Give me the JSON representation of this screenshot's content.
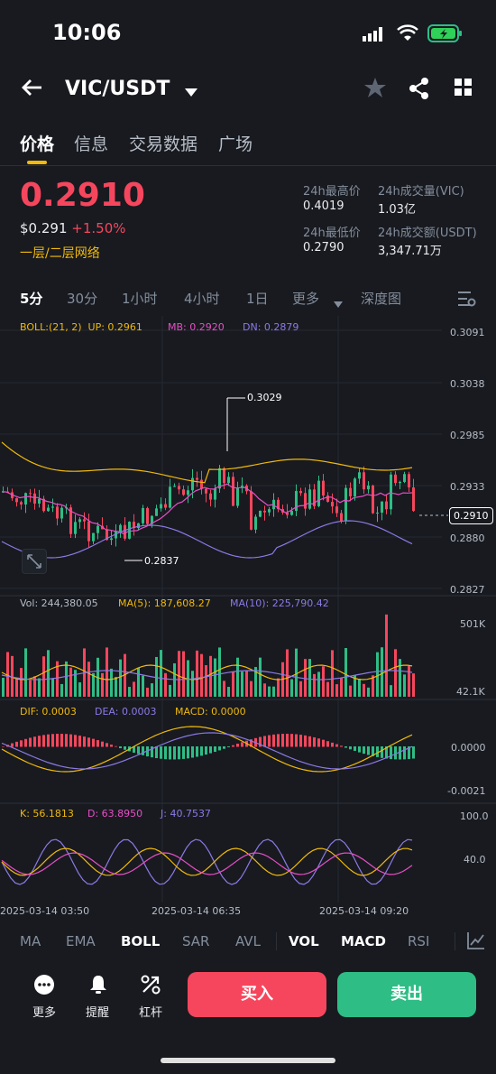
{
  "status": {
    "time": "10:06"
  },
  "header": {
    "pair": "VIC/USDT"
  },
  "tabs": [
    "价格",
    "信息",
    "交易数据",
    "广场"
  ],
  "ticker": {
    "last": "0.2910",
    "usd": "$0.291",
    "change": "+1.50%",
    "network": "一层/二层网络",
    "high_label": "24h最高价",
    "high": "0.4019",
    "low_label": "24h最低价",
    "low": "0.2790",
    "vol_label": "24h成交量(VIC)",
    "vol": "1.03亿",
    "amt_label": "24h成交额(USDT)",
    "amt": "3,347.71万"
  },
  "timeframes": [
    "5分",
    "30分",
    "1小时",
    "4小时",
    "1日",
    "更多",
    "深度图"
  ],
  "chart_data": {
    "type": "candlestick",
    "boll": {
      "label": "BOLL:(21, 2)",
      "up": "UP: 0.2961",
      "mb": "MB: 0.2920",
      "dn": "DN: 0.2879"
    },
    "price_axis": [
      "0.3091",
      "0.3038",
      "0.2985",
      "0.2933",
      "0.2880",
      "0.2827"
    ],
    "current_price": "0.2910",
    "high_marker": "0.3029",
    "low_marker": "0.2837",
    "volume": {
      "vol": "Vol: 244,380.05",
      "ma5": "MA(5): 187,608.27",
      "ma10": "MA(10): 225,790.42",
      "axis_top": "501K",
      "axis_bottom": "42.1K"
    },
    "macd": {
      "dif": "DIF: 0.0003",
      "dea": "DEA: 0.0003",
      "macd": "MACD: 0.0000",
      "axis_top": "0.0000",
      "axis_bottom": "-0.0021"
    },
    "kdj": {
      "k": "K: 56.1813",
      "d": "D: 63.8950",
      "j": "J: 40.7537",
      "axis_top": "100.0",
      "axis_mid": "40.0"
    },
    "time_axis": [
      "2025-03-14 03:50",
      "2025-03-14 06:35",
      "2025-03-14 09:20"
    ],
    "colors": {
      "up": "#2ebd85",
      "down": "#f6465d",
      "boll_up": "#f0b90b",
      "boll_mb": "#e84fc6",
      "boll_dn": "#8c7ae6"
    }
  },
  "indicators": [
    "MA",
    "EMA",
    "BOLL",
    "SAR",
    "AVL",
    "VOL",
    "MACD",
    "RSI"
  ],
  "footer": {
    "more": "更多",
    "alert": "提醒",
    "leverage": "杠杆",
    "buy": "买入",
    "sell": "卖出"
  }
}
